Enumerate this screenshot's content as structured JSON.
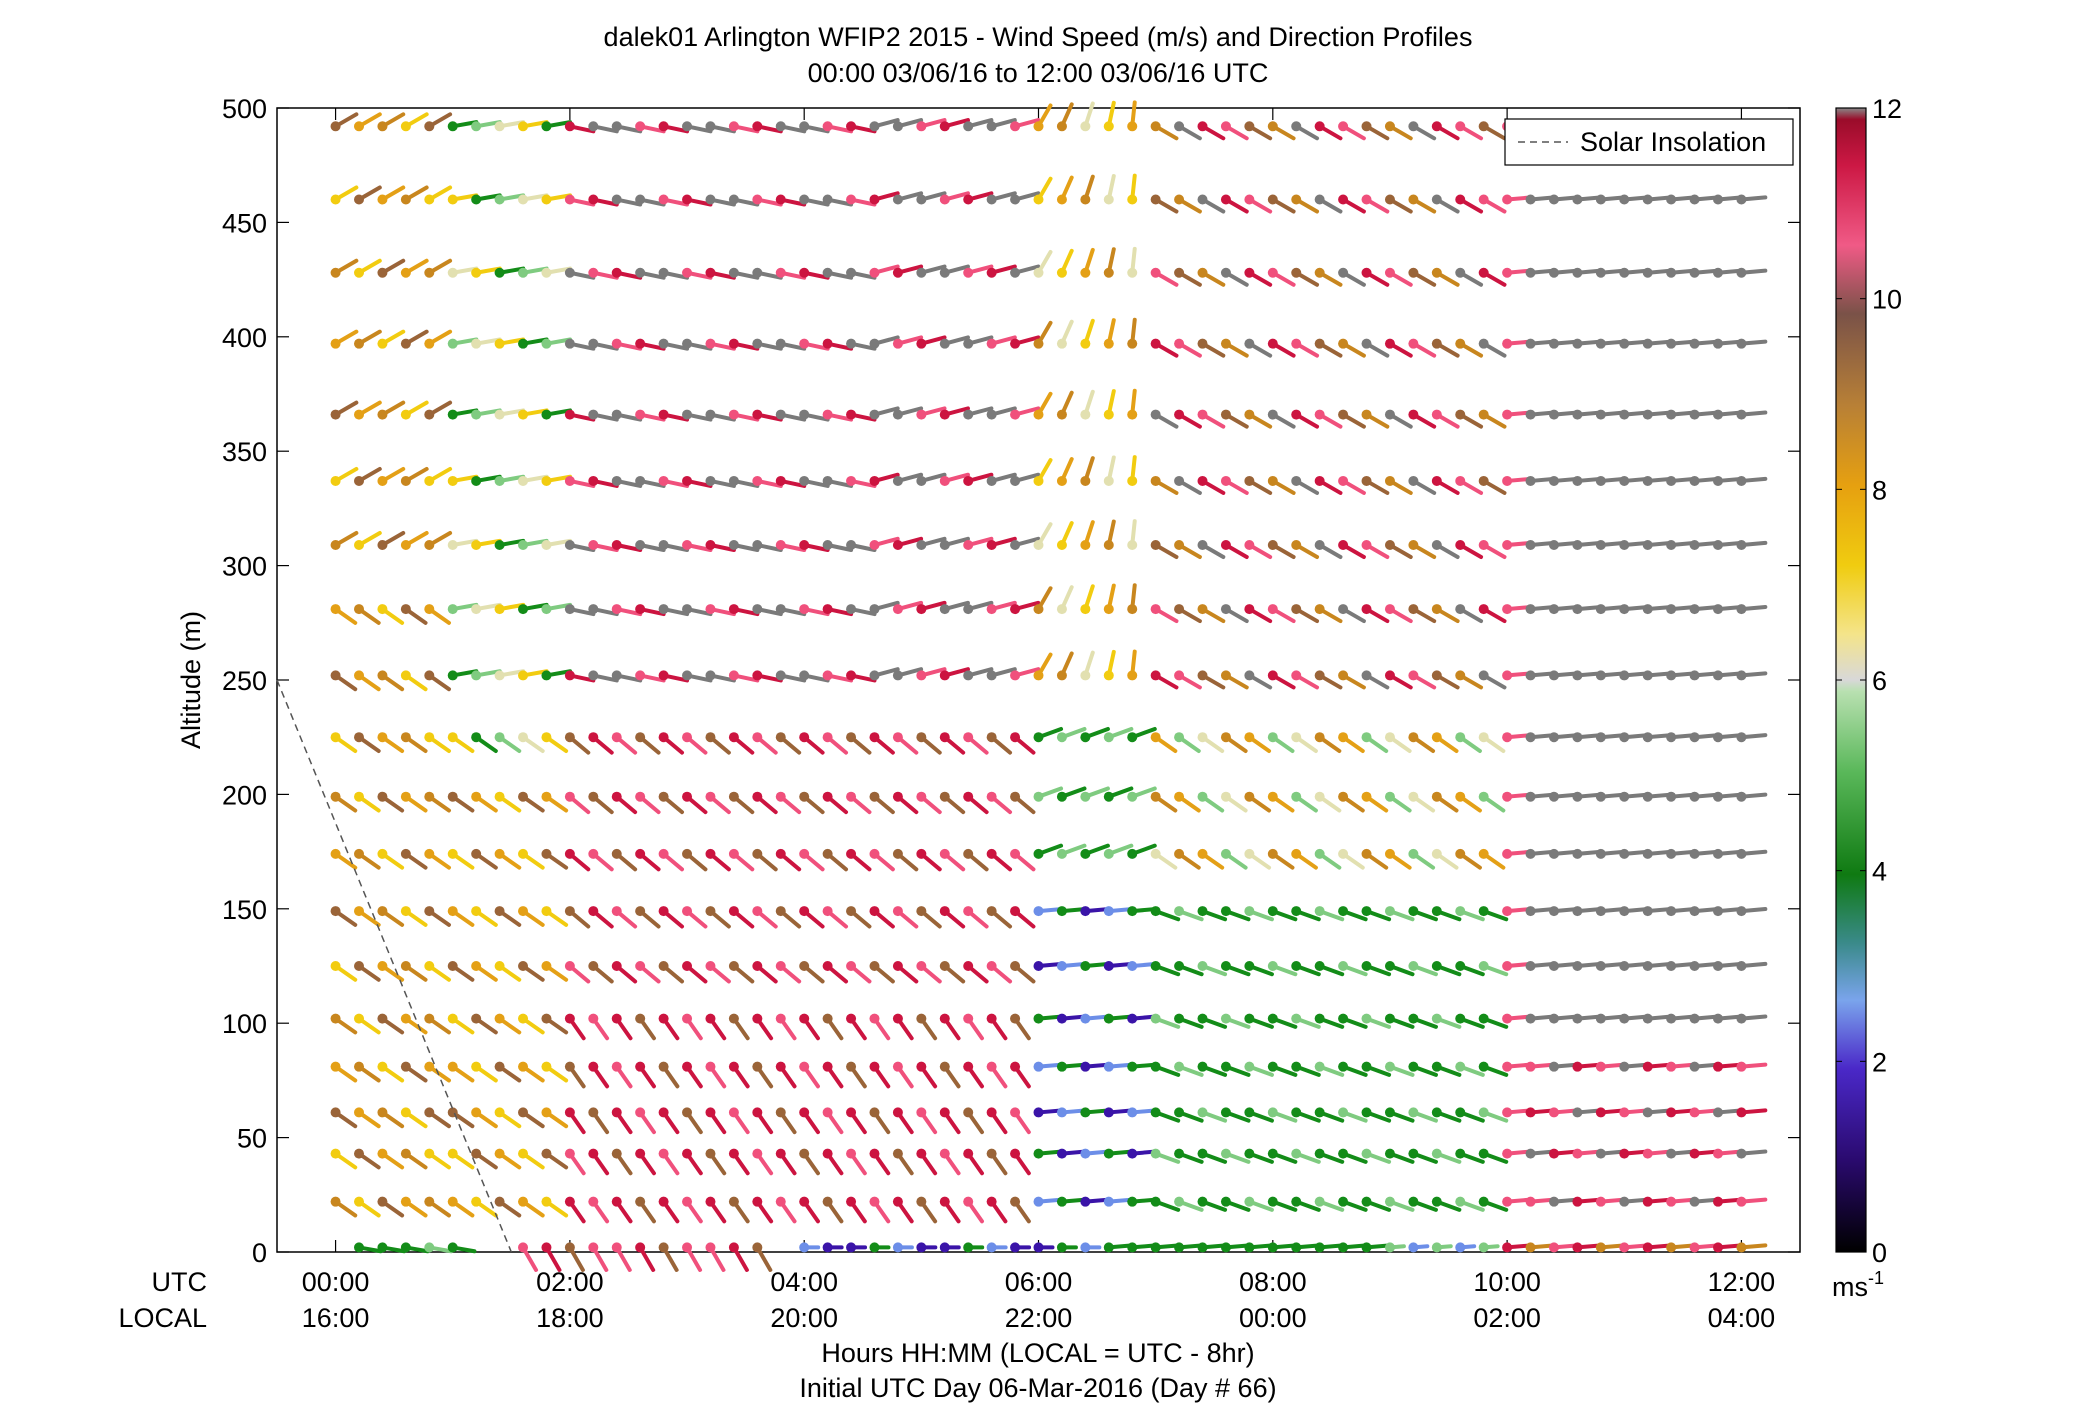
{
  "chart_data": {
    "type": "wind-barb-profile",
    "title": "dalek01 Arlington WFIP2 2015 - Wind Speed (m/s) and Direction Profiles",
    "subtitle": "00:00 03/06/16 to 12:00 03/06/16  UTC",
    "ylabel": "Altitude (m)",
    "xlabel": "Hours HH:MM  (LOCAL = UTC - 8hr)",
    "xlabel2": "Initial UTC Day 06-Mar-2016 (Day # 66)",
    "row_label_utc": "UTC",
    "row_label_local": "LOCAL",
    "xlim_hours": [
      -0.5,
      12.5
    ],
    "ylim": [
      0,
      500
    ],
    "y_ticks": [
      "0",
      "50",
      "100",
      "150",
      "200",
      "250",
      "300",
      "350",
      "400",
      "450",
      "500"
    ],
    "x_ticks_utc": [
      "00:00",
      "02:00",
      "04:00",
      "06:00",
      "08:00",
      "10:00",
      "12:00"
    ],
    "x_ticks_local": [
      "16:00",
      "18:00",
      "20:00",
      "22:00",
      "00:00",
      "02:00",
      "04:00"
    ],
    "legend_entry": "Solar Insolation",
    "legend_position": "top-right",
    "solar_insolation_line": [
      [
        -0.5,
        250
      ],
      [
        1.5,
        0
      ]
    ],
    "colorbar": {
      "ticks": [
        "0",
        "2",
        "4",
        "6",
        "8",
        "10",
        "12"
      ],
      "range": [
        0,
        12
      ],
      "unit": "ms",
      "unit_exp": "-1"
    },
    "time_step_hours": 0.2,
    "altitudes_m": [
      2,
      22,
      43,
      61,
      81,
      102,
      125,
      149,
      174,
      199,
      225,
      252,
      281,
      309,
      337,
      366,
      397,
      428,
      460,
      492
    ],
    "colors": {
      "purple": "#3a14a8",
      "blue": "#6c8ee8",
      "green": "#138c18",
      "light_green": "#7fcb80",
      "pale": "#e2e0b0",
      "yellow": "#f2cc10",
      "orange": "#e4a016",
      "dark_orange": "#c8861e",
      "brown": "#9a6438",
      "pink": "#f0507c",
      "crimson": "#cc1440",
      "gray": "#7a7a7a"
    }
  }
}
